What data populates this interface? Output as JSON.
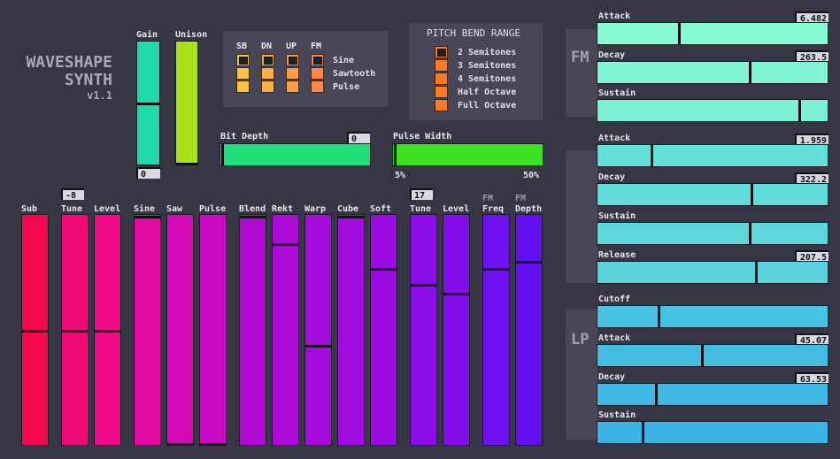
{
  "header": {
    "line1": "WAVESHAPE",
    "line2": "SYNTH",
    "version": "v1.1"
  },
  "gain": {
    "label": "Gain",
    "value": "0",
    "level": 0.5
  },
  "unison": {
    "label": "Unison",
    "level": 0.0
  },
  "waveform": {
    "columns": [
      "SB",
      "DN",
      "UP",
      "FM"
    ],
    "rows": [
      "Sine",
      "Sawtooth",
      "Pulse"
    ],
    "selected_row": 0
  },
  "pitch_bend": {
    "title": "PITCH BEND RANGE",
    "options": [
      "2 Semitones",
      "3 Semitones",
      "4 Semitones",
      "Half Octave",
      "Full Octave"
    ],
    "selected": 0
  },
  "bit_depth": {
    "label": "Bit Depth",
    "value": "0",
    "level": 0.0
  },
  "pulse_width": {
    "label": "Pulse Width",
    "min": "5%",
    "max": "50%",
    "level": 0.0
  },
  "sliders": {
    "sub": {
      "label": "Sub",
      "level": 0.5
    },
    "tune1": {
      "label": "Tune",
      "value": "-8",
      "level": 0.5
    },
    "level1": {
      "label": "Level",
      "level": 0.5
    },
    "sine": {
      "label": "Sine",
      "level": 1.0
    },
    "saw": {
      "label": "Saw",
      "level": 0.0
    },
    "pulse": {
      "label": "Pulse",
      "level": 0.0
    },
    "blend": {
      "label": "Blend",
      "level": 1.0
    },
    "rekt": {
      "label": "Rekt",
      "level": 0.88
    },
    "warp": {
      "label": "Warp",
      "level": 0.43
    },
    "cube": {
      "label": "Cube",
      "level": 1.0
    },
    "soft": {
      "label": "Soft",
      "level": 0.77
    },
    "tune2": {
      "label": "Tune",
      "value": "17",
      "level": 0.7
    },
    "level2": {
      "label": "Level",
      "level": 0.66
    },
    "fmfreq": {
      "label1": "FM",
      "label2": "Freq",
      "level": 0.77
    },
    "fmdepth": {
      "label1": "FM",
      "label2": "Depth",
      "level": 0.8
    }
  },
  "fm": {
    "label": "FM",
    "attack": {
      "label": "Attack",
      "value": "6.482",
      "level": 0.35
    },
    "decay": {
      "label": "Decay",
      "value": "263.5",
      "level": 0.66
    },
    "sustain": {
      "label": "Sustain",
      "level": 0.88
    }
  },
  "amp": {
    "attack": {
      "label": "Attack",
      "value": "1.959",
      "level": 0.23
    },
    "decay": {
      "label": "Decay",
      "value": "322.2",
      "level": 0.67
    },
    "sustain": {
      "label": "Sustain",
      "level": 0.66
    },
    "release": {
      "label": "Release",
      "value": "207.5",
      "level": 0.69
    }
  },
  "lp": {
    "label": "LP",
    "cutoff": {
      "label": "Cutoff",
      "level": 0.26
    },
    "attack": {
      "label": "Attack",
      "value": "45.07",
      "level": 0.45
    },
    "decay": {
      "label": "Decay",
      "value": "63.53",
      "level": 0.25
    },
    "sustain": {
      "label": "Sustain",
      "level": 0.19
    }
  }
}
